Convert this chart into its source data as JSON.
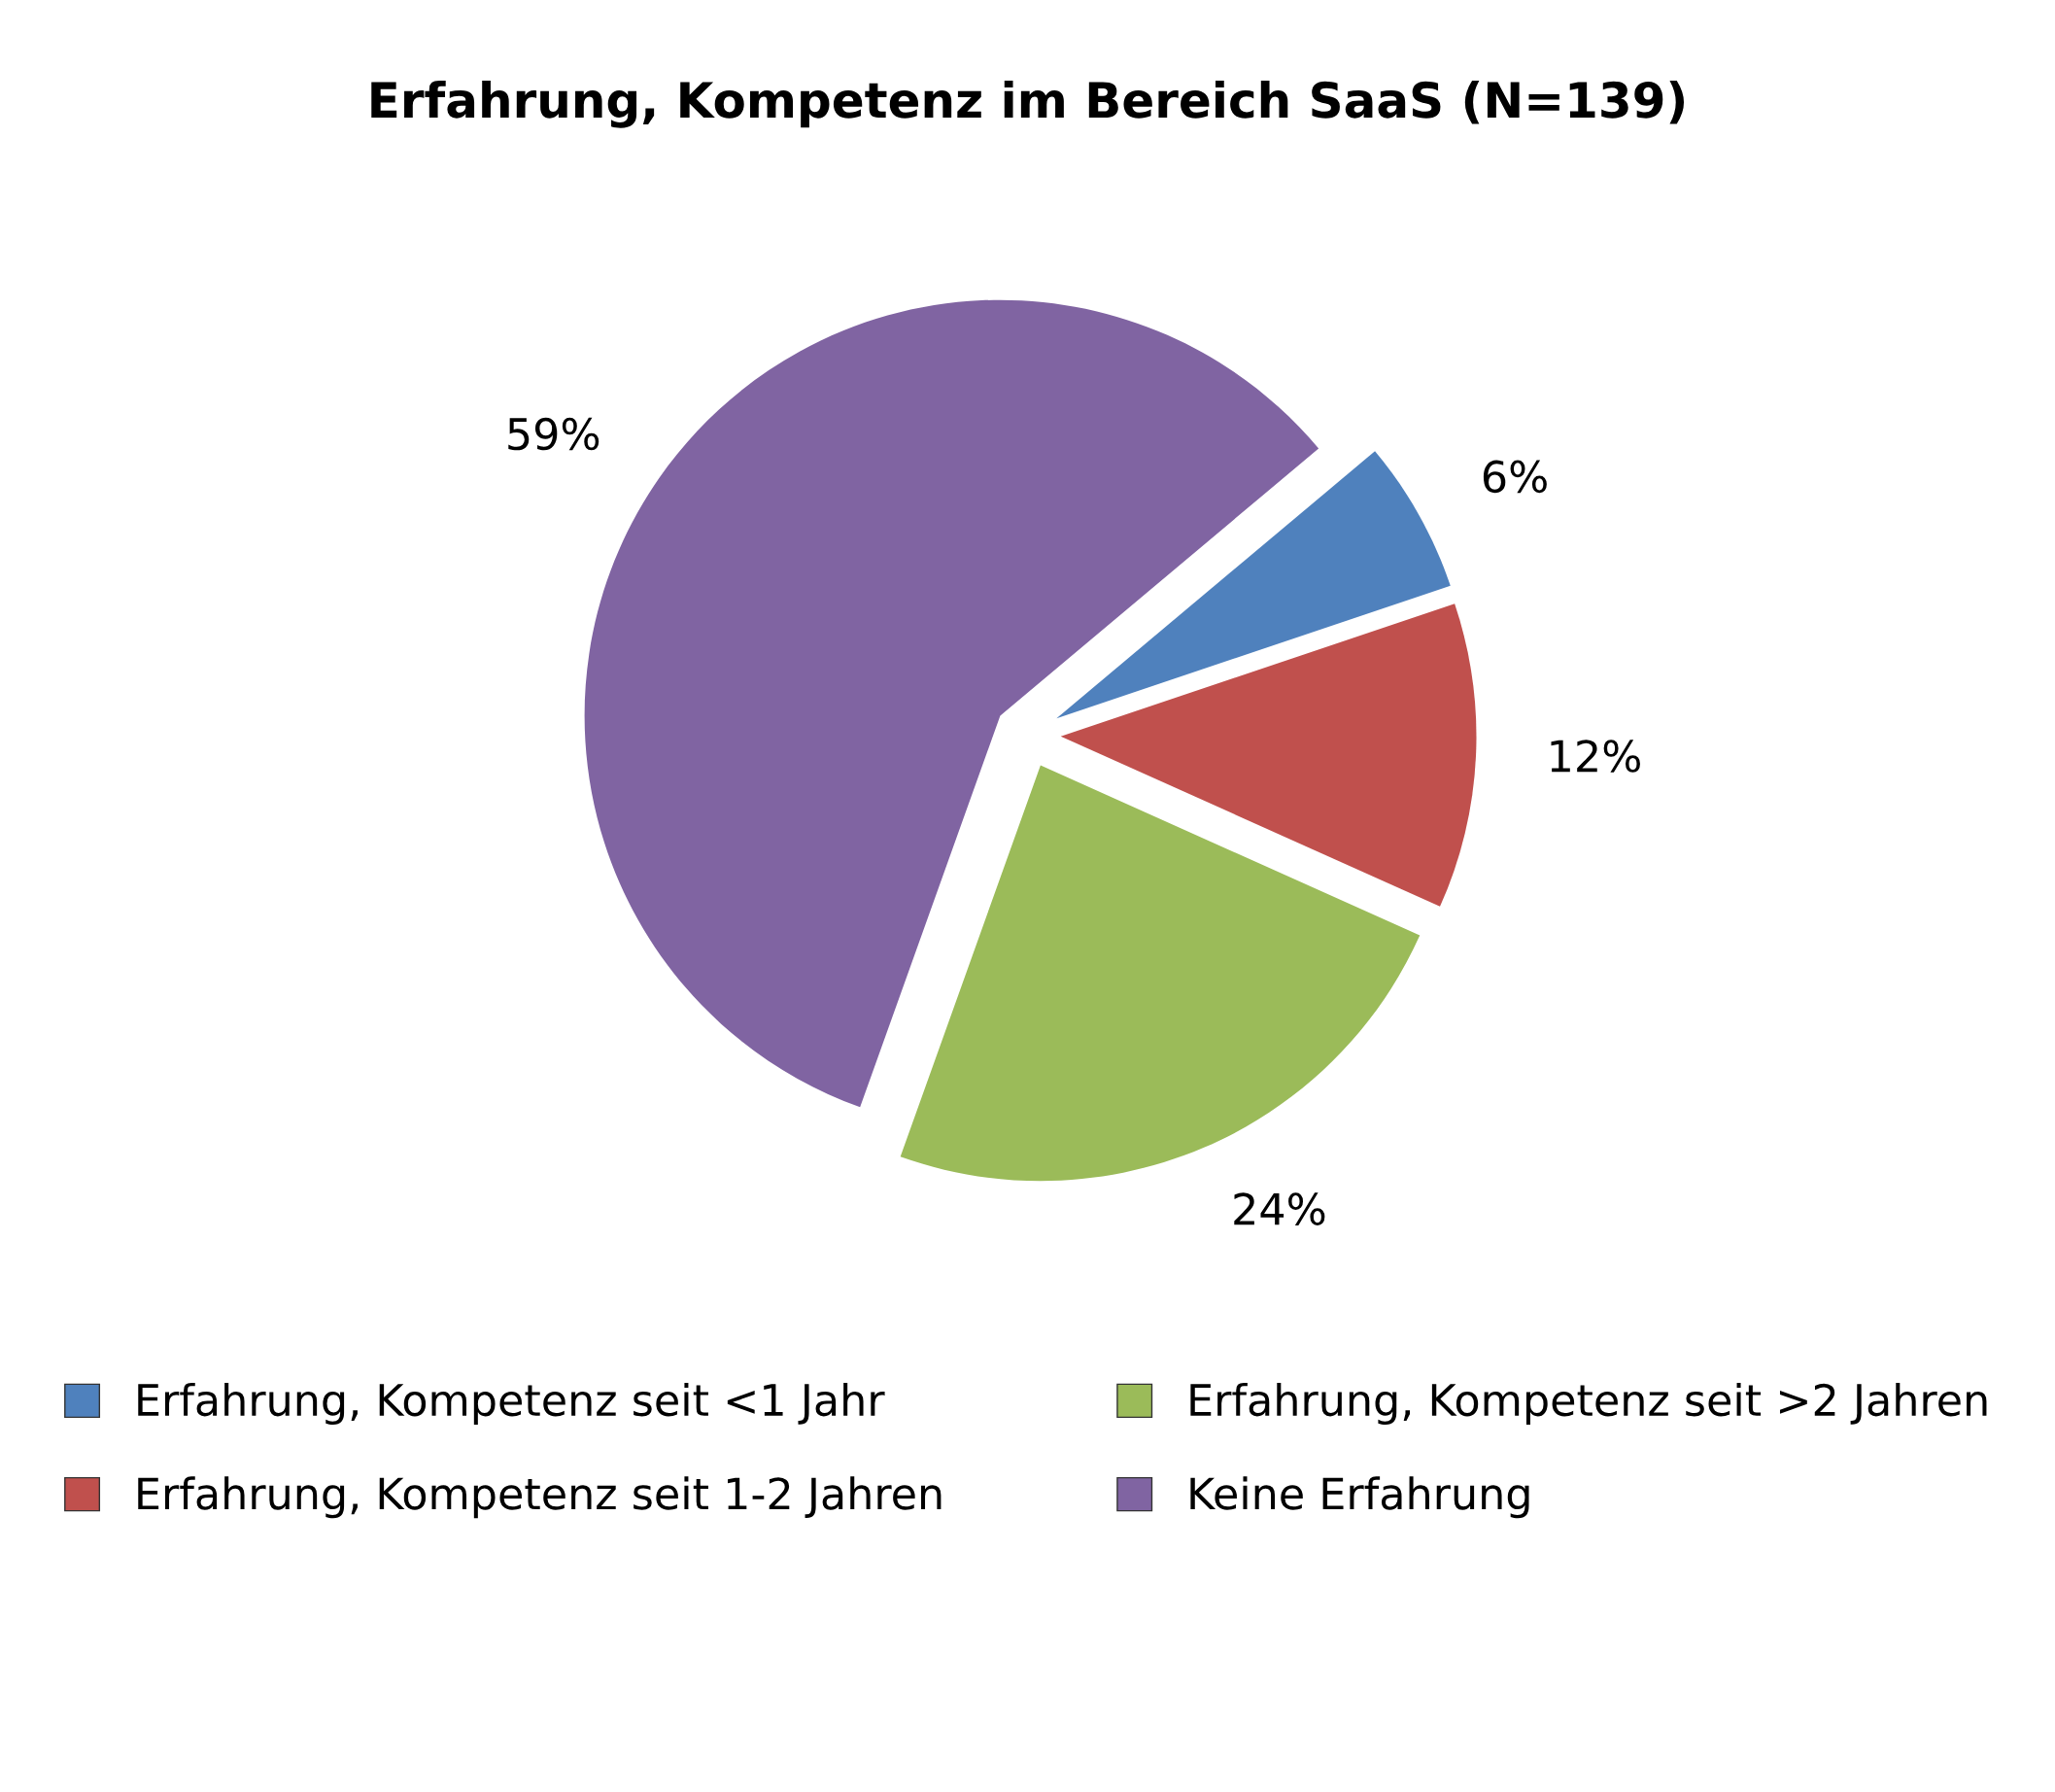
{
  "chart_data": {
    "type": "pie",
    "title": "Erfahrung, Kompetenz im Bereich SaaS (N=139)",
    "categories": [
      "Erfahrung, Kompetenz seit <1 Jahr",
      "Erfahrung, Kompetenz seit 1-2 Jahren",
      "Erfahrung, Kompetenz seit >2 Jahren",
      "Keine Erfahrung"
    ],
    "values": [
      6,
      12,
      24,
      59
    ],
    "value_labels": [
      "6%",
      "12%",
      "24%",
      "59%"
    ],
    "colors": [
      "#4f81bd",
      "#c0504d",
      "#9bbb59",
      "#8064a2"
    ],
    "legend": "bottom"
  }
}
